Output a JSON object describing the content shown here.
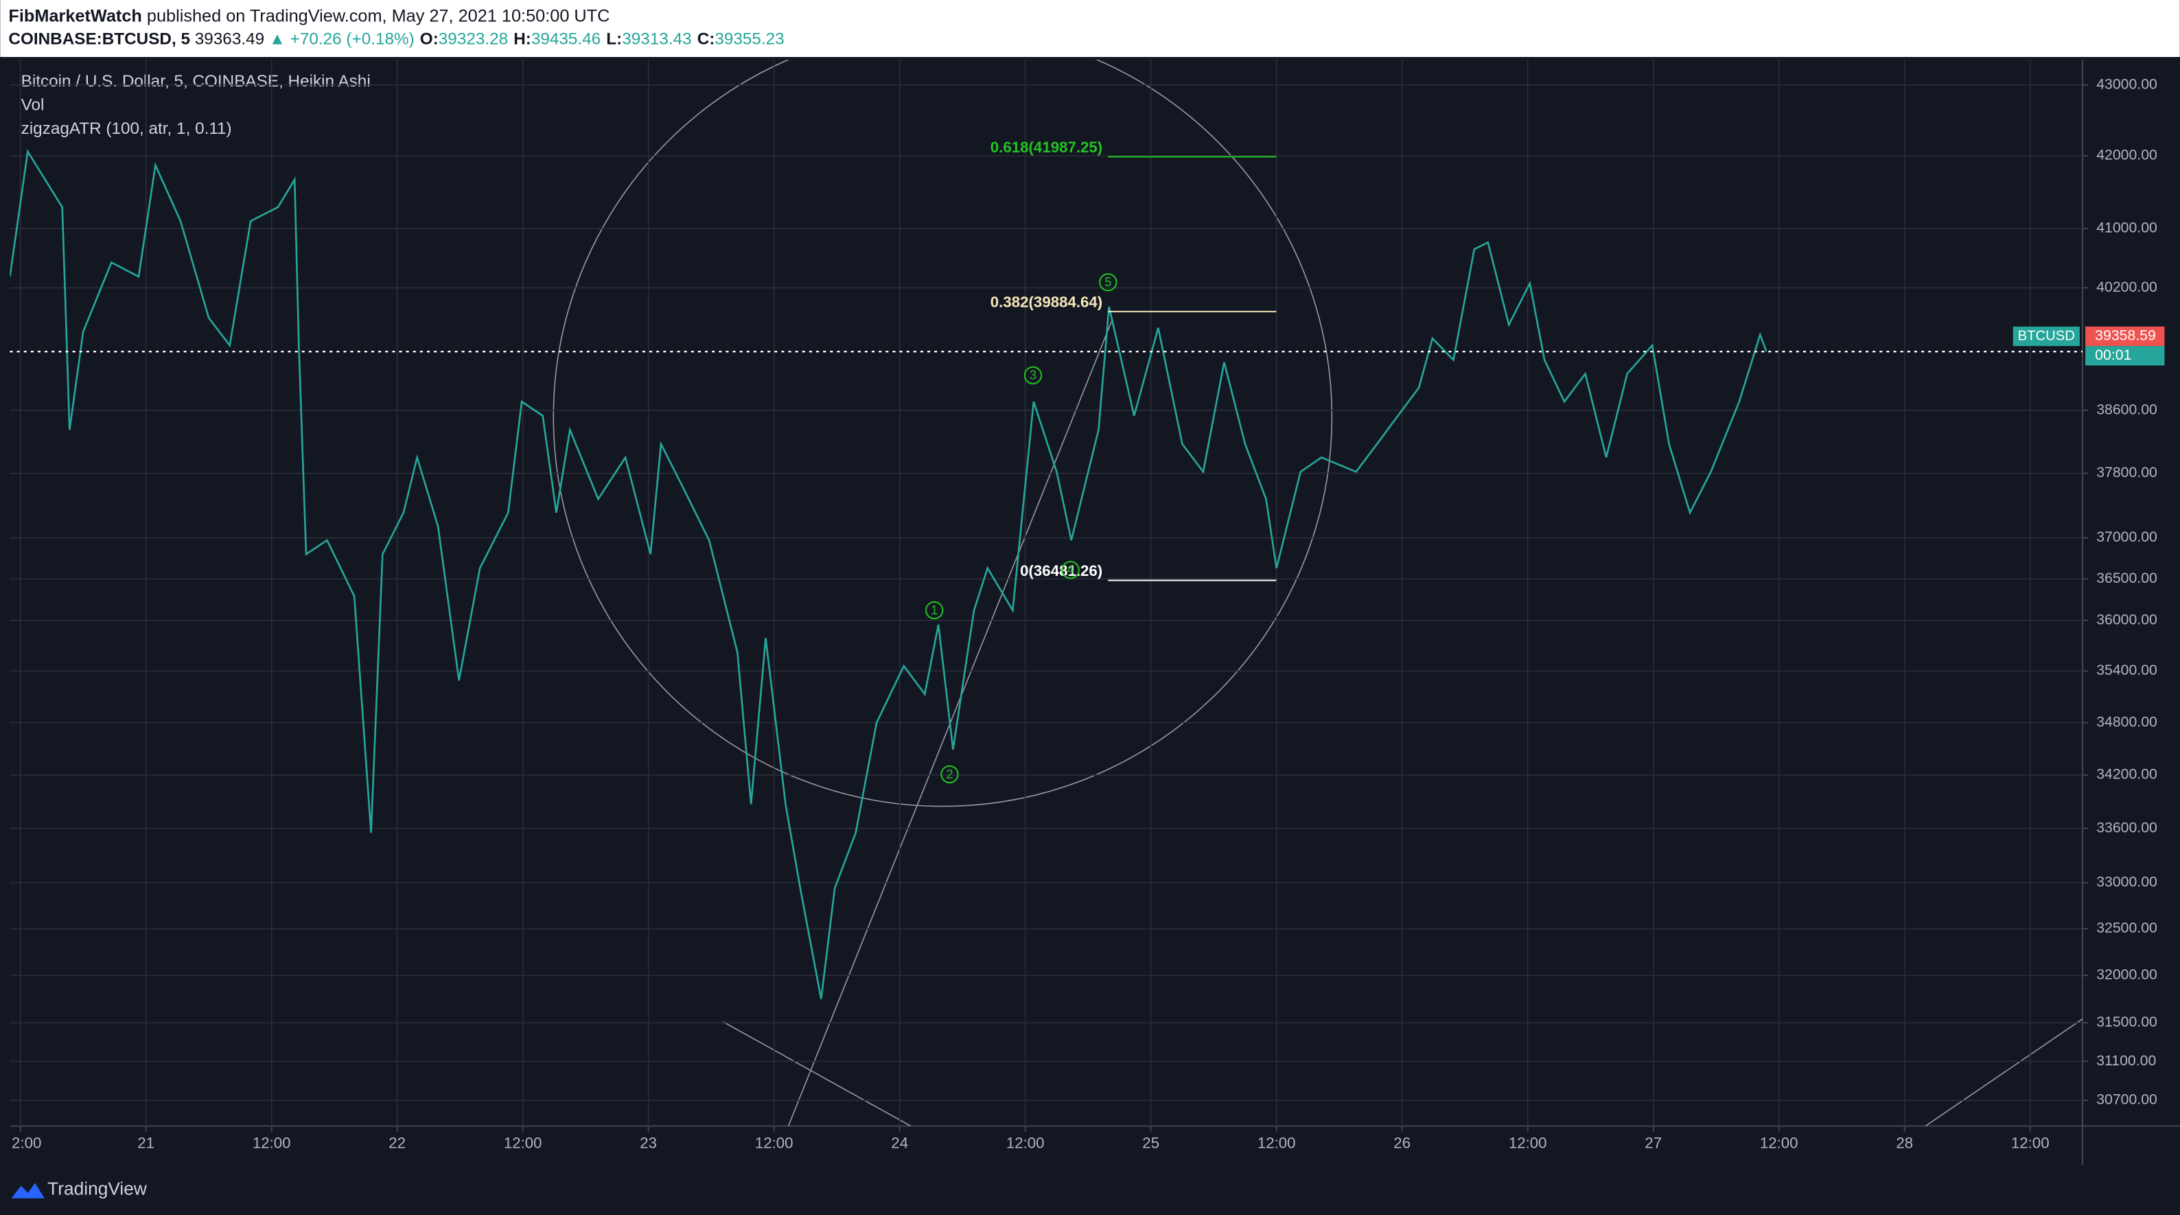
{
  "header": {
    "author": "FibMarketWatch",
    "published": "published on TradingView.com, May 27, 2021 10:50:00 UTC",
    "symbol": "COINBASE:BTCUSD, 5",
    "last": "39363.49",
    "change": "▲ +70.26 (+0.18%)",
    "ohlc": [
      {
        "key": "O:",
        "value": "39323.28"
      },
      {
        "key": "H:",
        "value": "39435.46"
      },
      {
        "key": "L:",
        "value": "39313.43"
      },
      {
        "key": "C:",
        "value": "39355.23"
      }
    ]
  },
  "footer": "TradingView",
  "chart_data": {
    "type": "line",
    "log": true,
    "grid": true,
    "indicators": [
      "Vol",
      "zigzagATR (100, atr, 1, 0.11)"
    ],
    "x": [
      -13.0,
      -11.3,
      -8.0,
      -7.3,
      -6.0,
      -3.3,
      -0.7,
      0.9,
      3.3,
      6.0,
      8.0,
      10.0,
      12.6,
      14.2,
      14.6,
      15.3,
      17.3,
      19.9,
      21.5,
      22.6,
      24.6,
      25.9,
      27.9,
      29.9,
      31.9,
      34.6,
      35.9,
      37.9,
      39.2,
      40.5,
      43.2,
      45.8,
      48.2,
      49.2,
      51.2,
      53.8,
      56.5,
      57.8,
      59.2,
      61.1,
      62.5,
      64.5,
      65.8,
      67.8,
      69.8,
      72.4,
      74.4,
      75.7,
      77.1,
      79.1,
      80.4,
      82.8,
      84.8,
      87.0,
      88.4,
      91.0,
      92.0,
      94.4,
      96.7,
      99.0,
      101.0,
      103.0,
      105.0,
      107.0,
      108.0,
      110.3,
      112.3,
      115.6,
      117.6,
      119.6,
      121.6,
      122.9,
      124.9,
      126.9,
      128.2,
      130.2,
      132.2,
      133.6,
      135.5,
      137.5,
      139.5,
      141.5,
      143.9,
      145.5,
      147.5,
      149.5,
      152.2,
      154.2,
      154.8
    ],
    "series": [
      {
        "name": "Bitcoin / U.S. Dollar, 5, COINBASE, Heikin Ashi",
        "color": "#26a69a",
        "values": [
          40350,
          42060,
          41290,
          38350,
          39620,
          40540,
          40350,
          41870,
          41100,
          39800,
          39440,
          41100,
          41290,
          41670,
          39440,
          36800,
          36970,
          36290,
          33550,
          36800,
          37310,
          38000,
          37140,
          35290,
          36630,
          37310,
          38710,
          38530,
          37310,
          38350,
          37480,
          38000,
          36800,
          38170,
          37650,
          36970,
          35620,
          33870,
          35790,
          33870,
          32940,
          31750,
          32940,
          33550,
          34800,
          35460,
          35130,
          35950,
          34490,
          36120,
          36630,
          36120,
          38710,
          37820,
          36970,
          38350,
          39950,
          38530,
          39670,
          38170,
          37820,
          39220,
          38170,
          37480,
          36630,
          37820,
          38000,
          37820,
          38170,
          38530,
          38890,
          39530,
          39250,
          40720,
          40810,
          39710,
          40260,
          39250,
          38710,
          39070,
          38000,
          39070,
          39440,
          38170,
          37310,
          37820,
          38710,
          39580,
          39360
        ]
      }
    ],
    "xlim": [
      -13,
      185
    ],
    "xticks": [
      {
        "value": -12,
        "label": "2:00"
      },
      {
        "value": 0,
        "label": "21"
      },
      {
        "value": 12,
        "label": "12:00"
      },
      {
        "value": 24,
        "label": "22"
      },
      {
        "value": 36,
        "label": "12:00"
      },
      {
        "value": 48,
        "label": "23"
      },
      {
        "value": 60,
        "label": "12:00"
      },
      {
        "value": 72,
        "label": "24"
      },
      {
        "value": 84,
        "label": "12:00"
      },
      {
        "value": 96,
        "label": "25"
      },
      {
        "value": 108,
        "label": "12:00"
      },
      {
        "value": 120,
        "label": "26"
      },
      {
        "value": 132,
        "label": "12:00"
      },
      {
        "value": 144,
        "label": "27"
      },
      {
        "value": 156,
        "label": "12:00"
      },
      {
        "value": 168,
        "label": "28"
      },
      {
        "value": 180,
        "label": "12:00"
      }
    ],
    "ylim": [
      30440,
      43360
    ],
    "yticks": [
      {
        "value": 43000,
        "label": "43000.00"
      },
      {
        "value": 42000,
        "label": "42000.00"
      },
      {
        "value": 41000,
        "label": "41000.00"
      },
      {
        "value": 40200,
        "label": "40200.00"
      },
      {
        "value": 38600,
        "label": "38600.00"
      },
      {
        "value": 37800,
        "label": "37800.00"
      },
      {
        "value": 37000,
        "label": "37000.00"
      },
      {
        "value": 36500,
        "label": "36500.00"
      },
      {
        "value": 36000,
        "label": "36000.00"
      },
      {
        "value": 35400,
        "label": "35400.00"
      },
      {
        "value": 34800,
        "label": "34800.00"
      },
      {
        "value": 34200,
        "label": "34200.00"
      },
      {
        "value": 33600,
        "label": "33600.00"
      },
      {
        "value": 33000,
        "label": "33000.00"
      },
      {
        "value": 32500,
        "label": "32500.00"
      },
      {
        "value": 32000,
        "label": "32000.00"
      },
      {
        "value": 31500,
        "label": "31500.00"
      },
      {
        "value": 31100,
        "label": "31100.00"
      },
      {
        "value": 30700,
        "label": "30700.00"
      }
    ],
    "fib_levels": [
      {
        "value": 41987.25,
        "label": "0.618(41987.25)",
        "color": "#22c322"
      },
      {
        "value": 39884.64,
        "label": "0.382(39884.64)",
        "color": "#f5e7b8"
      },
      {
        "value": 36481.26,
        "label": "0(36481.26)",
        "color": "#ffffff"
      }
    ],
    "waves": [
      "1",
      "2",
      "3",
      "4",
      "5"
    ],
    "last_price": {
      "symbol": "BTCUSD",
      "value": 39358.59,
      "timer": "00:01"
    }
  }
}
